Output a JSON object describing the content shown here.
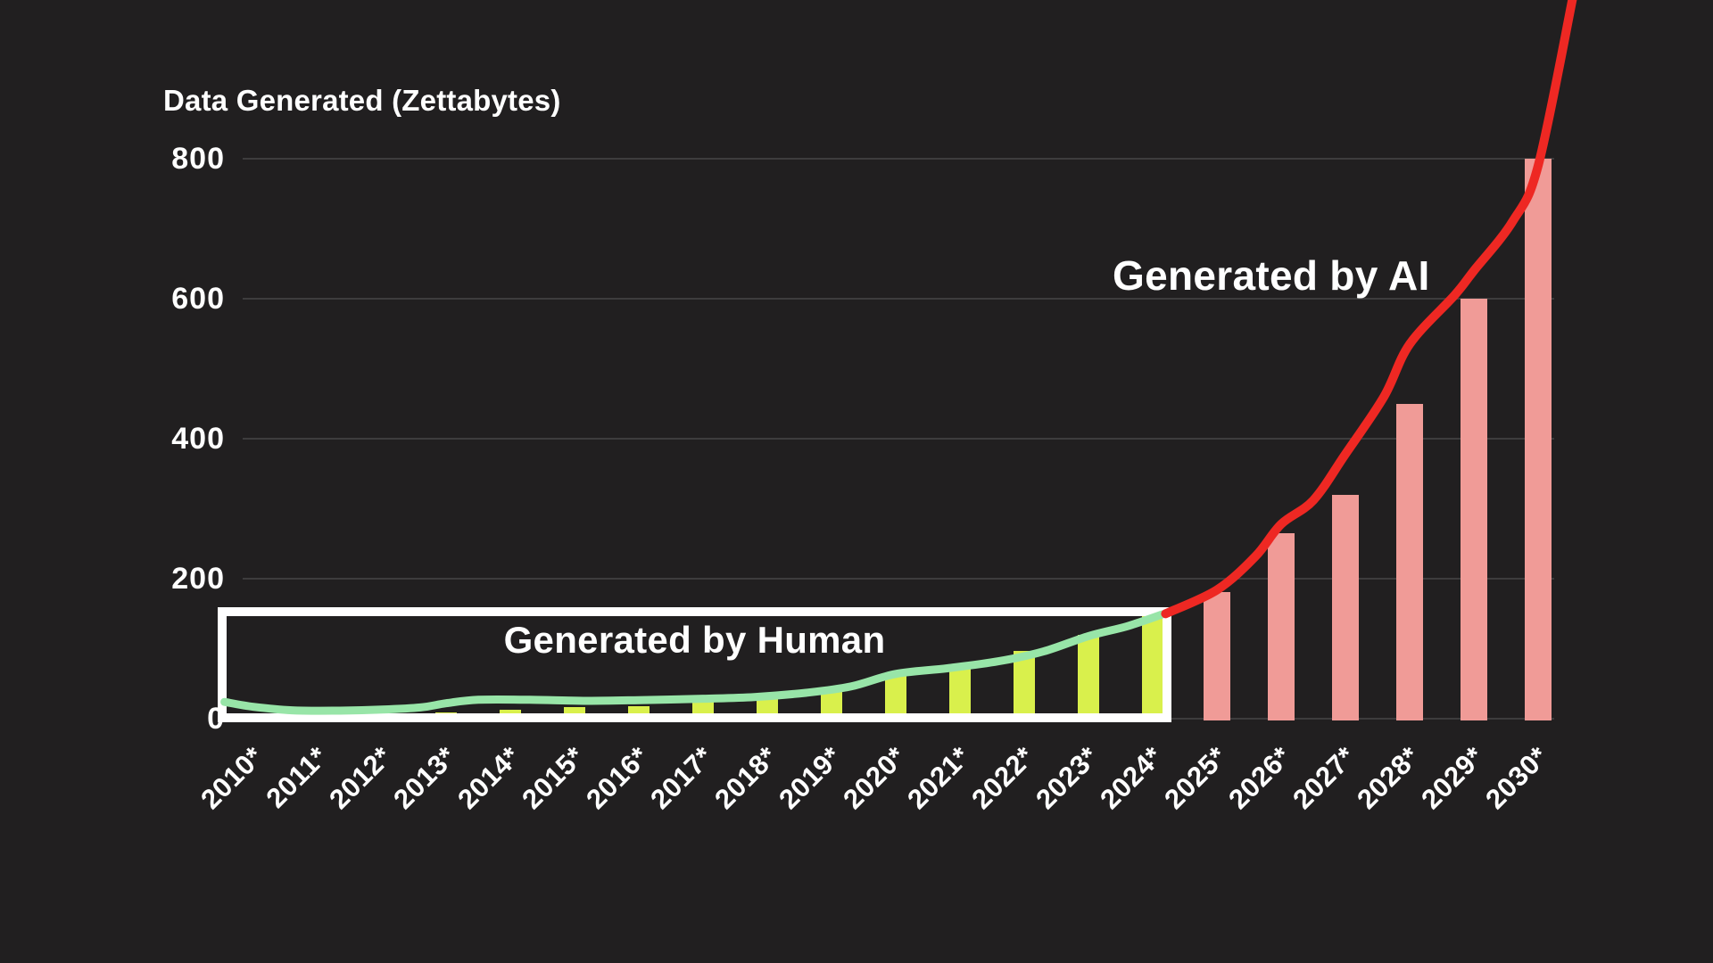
{
  "title": {
    "text": "Data Generated (Zettabytes)"
  },
  "annotations": {
    "human": "Generated by Human",
    "ai": "Generated by AI"
  },
  "colors": {
    "background": "#211f20",
    "text": "#ffffff",
    "gridline": "#3d3c3d",
    "human_bar": "#d9f04c",
    "human_line": "#98e5a8",
    "ai_bar": "#f09b97",
    "ai_line": "#ee2823",
    "highlight_box": "#ffffff"
  },
  "chart_data": {
    "type": "bar",
    "subtype": "bar-and-line combo, dark infographic",
    "title": "Data Generated (Zettabytes)",
    "xlabel": "",
    "ylabel": "Data Generated (Zettabytes)",
    "ylim": [
      0,
      800
    ],
    "yticks": [
      0,
      200,
      400,
      600,
      800
    ],
    "grid": "horizontal",
    "legend": "none (inline text annotations)",
    "categories": [
      "2010*",
      "2011*",
      "2012*",
      "2013*",
      "2014*",
      "2015*",
      "2016*",
      "2017*",
      "2018*",
      "2019*",
      "2020*",
      "2021*",
      "2022*",
      "2023*",
      "2024*",
      "2025*",
      "2026*",
      "2027*",
      "2028*",
      "2029*",
      "2030*"
    ],
    "series": [
      {
        "name": "Generated by Human (bars)",
        "type": "bar",
        "color_key": "human_bar",
        "start_year": 2010,
        "values": [
          2,
          5,
          6.5,
          9,
          13,
          16,
          18,
          26,
          33,
          41,
          64,
          75,
          97,
          120,
          147
        ]
      },
      {
        "name": "Generated by AI (bars, forecast)",
        "type": "bar",
        "color_key": "ai_bar",
        "start_year": 2025,
        "values": [
          181,
          265,
          320,
          450,
          600,
          800
        ]
      },
      {
        "name": "Generated by Human (trend line)",
        "type": "line",
        "color_key": "human_line",
        "points": [
          [
            2009.55,
            24
          ],
          [
            2010,
            17
          ],
          [
            2010.6,
            12
          ],
          [
            2011.3,
            11.5
          ],
          [
            2012,
            13
          ],
          [
            2012.6,
            16
          ],
          [
            2013,
            22
          ],
          [
            2013.5,
            27
          ],
          [
            2014.3,
            27
          ],
          [
            2015.2,
            25.5
          ],
          [
            2016,
            26.5
          ],
          [
            2017,
            28.5
          ],
          [
            2017.8,
            31
          ],
          [
            2018.6,
            37
          ],
          [
            2019.3,
            46
          ],
          [
            2020,
            64
          ],
          [
            2020.8,
            72
          ],
          [
            2021.6,
            82
          ],
          [
            2022.3,
            96
          ],
          [
            2023,
            118
          ],
          [
            2023.6,
            132
          ],
          [
            2024.15,
            149
          ]
        ]
      },
      {
        "name": "Generated by AI (trend line)",
        "type": "line",
        "color_key": "ai_line",
        "points": [
          [
            2024.2,
            150
          ],
          [
            2025,
            184
          ],
          [
            2025.6,
            232
          ],
          [
            2026,
            278
          ],
          [
            2026.5,
            312
          ],
          [
            2027,
            378
          ],
          [
            2027.6,
            460
          ],
          [
            2028,
            535
          ],
          [
            2028.7,
            605
          ],
          [
            2029,
            640
          ],
          [
            2029.6,
            710
          ],
          [
            2030,
            790
          ],
          [
            2030.55,
            1035
          ]
        ]
      }
    ],
    "highlight_box_label": "Generated by Human",
    "highlight_box_year_range": [
      2010,
      2024
    ],
    "highlight_box_value_top": 160
  }
}
